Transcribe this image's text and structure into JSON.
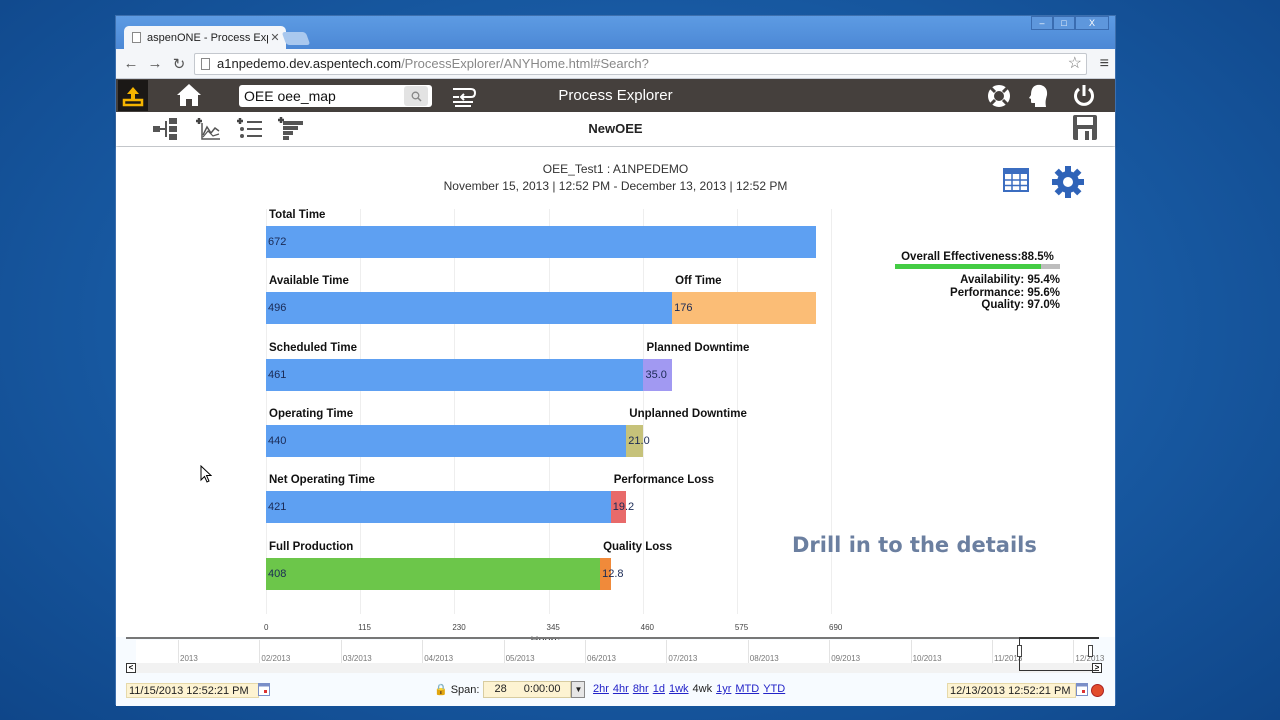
{
  "browser": {
    "tab_title": "aspenONE - Process Explo",
    "url_host": "a1npedemo.dev.aspentech.com",
    "url_path": "/ProcessExplorer/ANYHome.html#Search?",
    "window_controls": {
      "minimize": "–",
      "maximize": "□",
      "close": "X"
    }
  },
  "appbar": {
    "title": "Process Explorer",
    "search_value": "OEE oee_map",
    "icons": [
      "upload-icon",
      "home-icon",
      "search-icon",
      "wrap-icon",
      "help-lifebuoy-icon",
      "user-profile-icon",
      "power-icon"
    ]
  },
  "toolbar": {
    "document_name": "NewOEE",
    "icons": [
      "hierarchy-icon",
      "add-trend-icon",
      "add-list-icon",
      "add-funnel-icon",
      "save-icon"
    ]
  },
  "chart_header": {
    "title": "OEE_Test1 : A1NPEDEMO",
    "range": "November 15, 2013 | 12:52 PM - December 13, 2013 | 12:52 PM"
  },
  "kpis": {
    "overall_label": "Overall Effectiveness:",
    "overall_value": "88.5%",
    "availability": "Availability: 95.4%",
    "performance": "Performance: 95.6%",
    "quality": "Quality: 97.0%",
    "overall_pct": 88.5,
    "bar_color": "#44cc44"
  },
  "chart_data": {
    "type": "bar",
    "orientation": "horizontal-stacked",
    "title": "OEE_Test1 : A1NPEDEMO",
    "xlabel": "Hours",
    "xlim": [
      0,
      690
    ],
    "xticks": [
      "0",
      "115",
      "230",
      "345",
      "460",
      "575",
      "690"
    ],
    "grid": true,
    "rows": [
      {
        "label": "Total Time",
        "value": 672,
        "display": "672",
        "color": "#5ea0f2",
        "loss_label": "",
        "loss_value": null,
        "loss_display": "",
        "loss_color": ""
      },
      {
        "label": "Available Time",
        "value": 496,
        "display": "496",
        "color": "#5ea0f2",
        "loss_label": "Off Time",
        "loss_value": 176,
        "loss_display": "176",
        "loss_color": "#fbbd76"
      },
      {
        "label": "Scheduled Time",
        "value": 461,
        "display": "461",
        "color": "#5ea0f2",
        "loss_label": "Planned Downtime",
        "loss_value": 35.0,
        "loss_display": "35.0",
        "loss_color": "#a199f2"
      },
      {
        "label": "Operating Time",
        "value": 440,
        "display": "440",
        "color": "#5ea0f2",
        "loss_label": "Unplanned Downtime",
        "loss_value": 21.0,
        "loss_display": "21.0",
        "loss_color": "#c6c27a"
      },
      {
        "label": "Net Operating Time",
        "value": 421,
        "display": "421",
        "color": "#5ea0f2",
        "loss_label": "Performance Loss",
        "loss_value": 19.2,
        "loss_display": "19.2",
        "loss_color": "#e86a6a"
      },
      {
        "label": "Full Production",
        "value": 408,
        "display": "408",
        "color": "#6cc64a",
        "loss_label": "Quality Loss",
        "loss_value": 12.8,
        "loss_display": "12.8",
        "loss_color": "#f08a3a"
      }
    ]
  },
  "overlay_caption": "Drill in to the details",
  "timeline": {
    "months": [
      "2013",
      "02/2013",
      "03/2013",
      "04/2013",
      "05/2013",
      "06/2013",
      "07/2013",
      "08/2013",
      "09/2013",
      "10/2013",
      "11/2013",
      "12/2013"
    ]
  },
  "footer": {
    "start_time": "11/15/2013 12:52:21 PM",
    "end_time": "12/13/2013 12:52:21 PM",
    "span_label": "Span:",
    "span_days": "28",
    "span_time": "0:00:00",
    "presets": [
      "2hr",
      "4hr",
      "8hr",
      "1d",
      "1wk",
      "4wk",
      "1yr",
      "MTD",
      "YTD"
    ],
    "active_preset": "4wk"
  }
}
